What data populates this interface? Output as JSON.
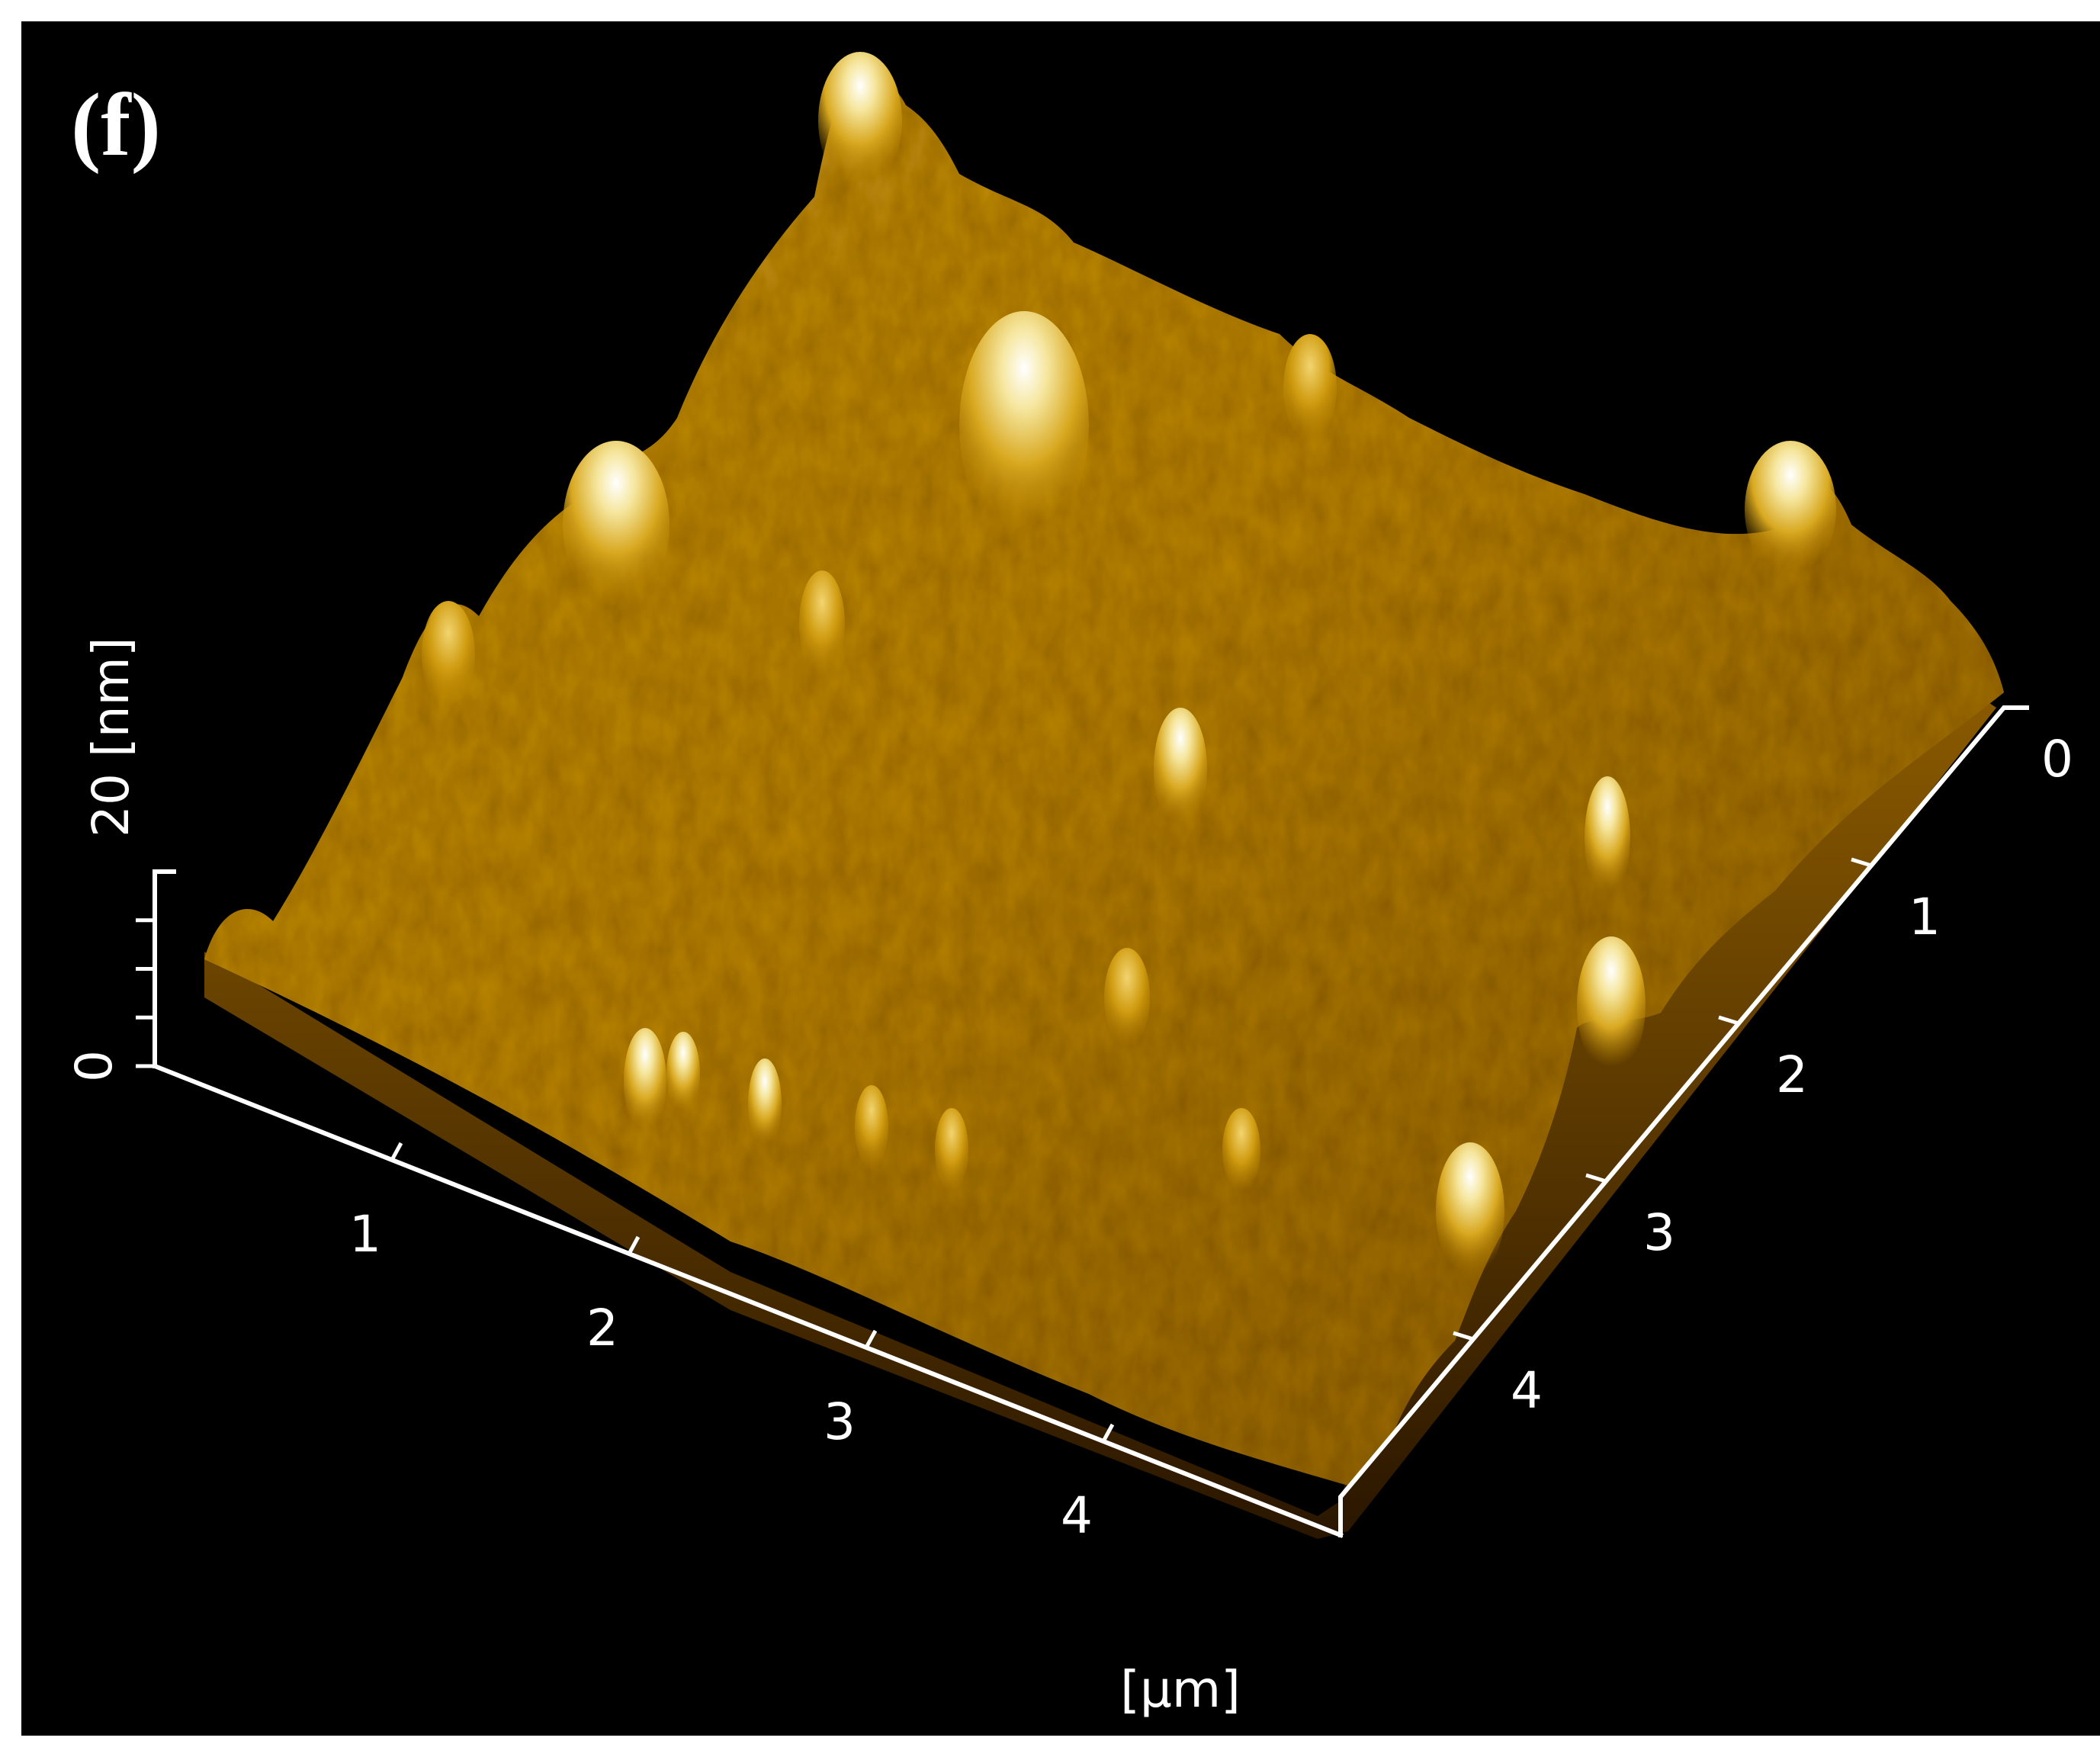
{
  "panel_label": "(f)",
  "chart_data": {
    "type": "surface",
    "x_axis": {
      "unit_label": "[μm]",
      "ticks": [
        1,
        2,
        3,
        4
      ],
      "range": [
        0,
        5
      ]
    },
    "y_axis": {
      "unit_label": "",
      "ticks": [
        0,
        1,
        2,
        3,
        4
      ],
      "range": [
        0,
        5
      ]
    },
    "z_axis": {
      "unit_label": "20 [nm]",
      "ticks": [
        0
      ],
      "range": [
        0,
        20
      ],
      "minor_ticks": [
        5,
        10,
        15
      ]
    },
    "colormap": [
      "#3a1f00",
      "#7a4a00",
      "#b07a00",
      "#d4a21a",
      "#f0d060",
      "#ffffff"
    ],
    "background": "#000000"
  }
}
